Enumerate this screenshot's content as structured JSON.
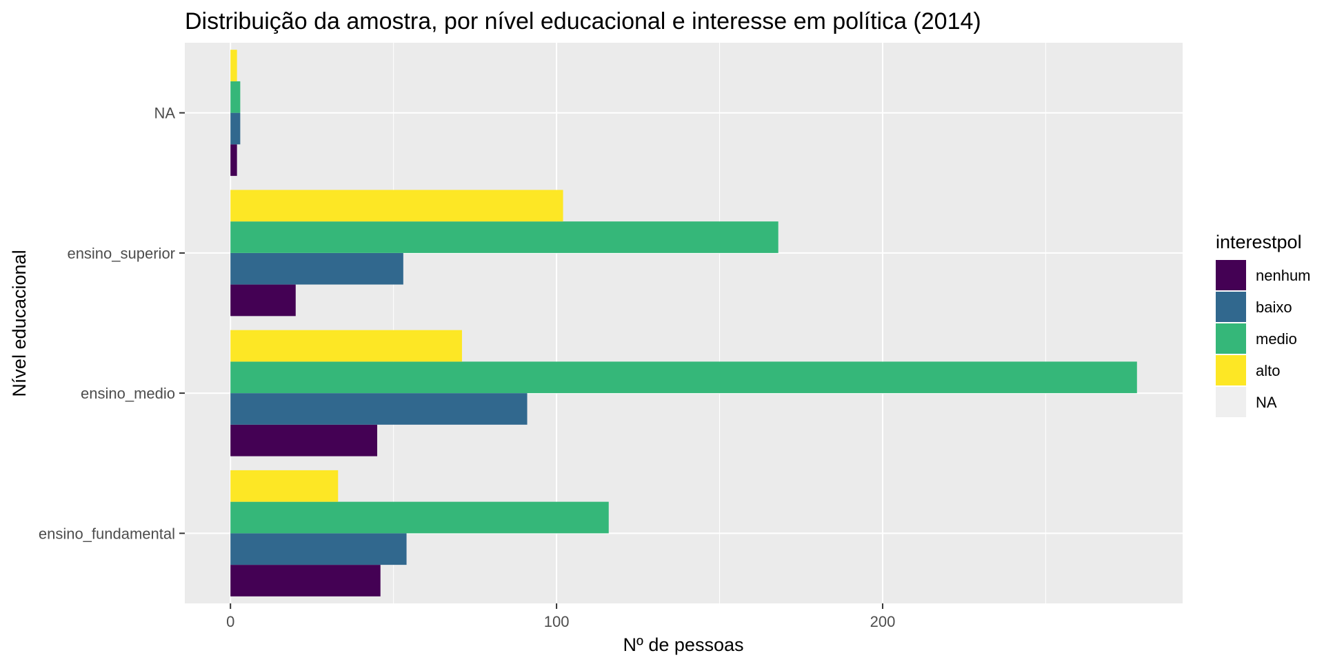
{
  "chart_data": {
    "type": "bar",
    "orientation": "horizontal",
    "title": "Distribuição da amostra, por nível educacional e interesse em política (2014)",
    "xlabel": "Nº de pessoas",
    "ylabel": "Nível educacional",
    "xlim": [
      -14,
      292
    ],
    "x_ticks": [
      0,
      100,
      200
    ],
    "categories": [
      "ensino_fundamental",
      "ensino_medio",
      "ensino_superior",
      "NA"
    ],
    "series": [
      {
        "name": "nenhum",
        "color": "#440154",
        "values": [
          46,
          45,
          20,
          2
        ]
      },
      {
        "name": "baixo",
        "color": "#31688E",
        "values": [
          54,
          91,
          53,
          3
        ]
      },
      {
        "name": "medio",
        "color": "#35B779",
        "values": [
          116,
          278,
          168,
          3
        ]
      },
      {
        "name": "alto",
        "color": "#FDE725",
        "values": [
          33,
          71,
          102,
          2
        ]
      }
    ],
    "legend": {
      "title": "interestpol",
      "position": "right",
      "entries": [
        {
          "label": "nenhum",
          "color": "#440154"
        },
        {
          "label": "baixo",
          "color": "#31688E"
        },
        {
          "label": "medio",
          "color": "#35B779"
        },
        {
          "label": "alto",
          "color": "#FDE725"
        },
        {
          "label": "NA",
          "color": "#EFEFEF"
        }
      ]
    },
    "panel_background": "#EBEBEB",
    "grid": true
  }
}
